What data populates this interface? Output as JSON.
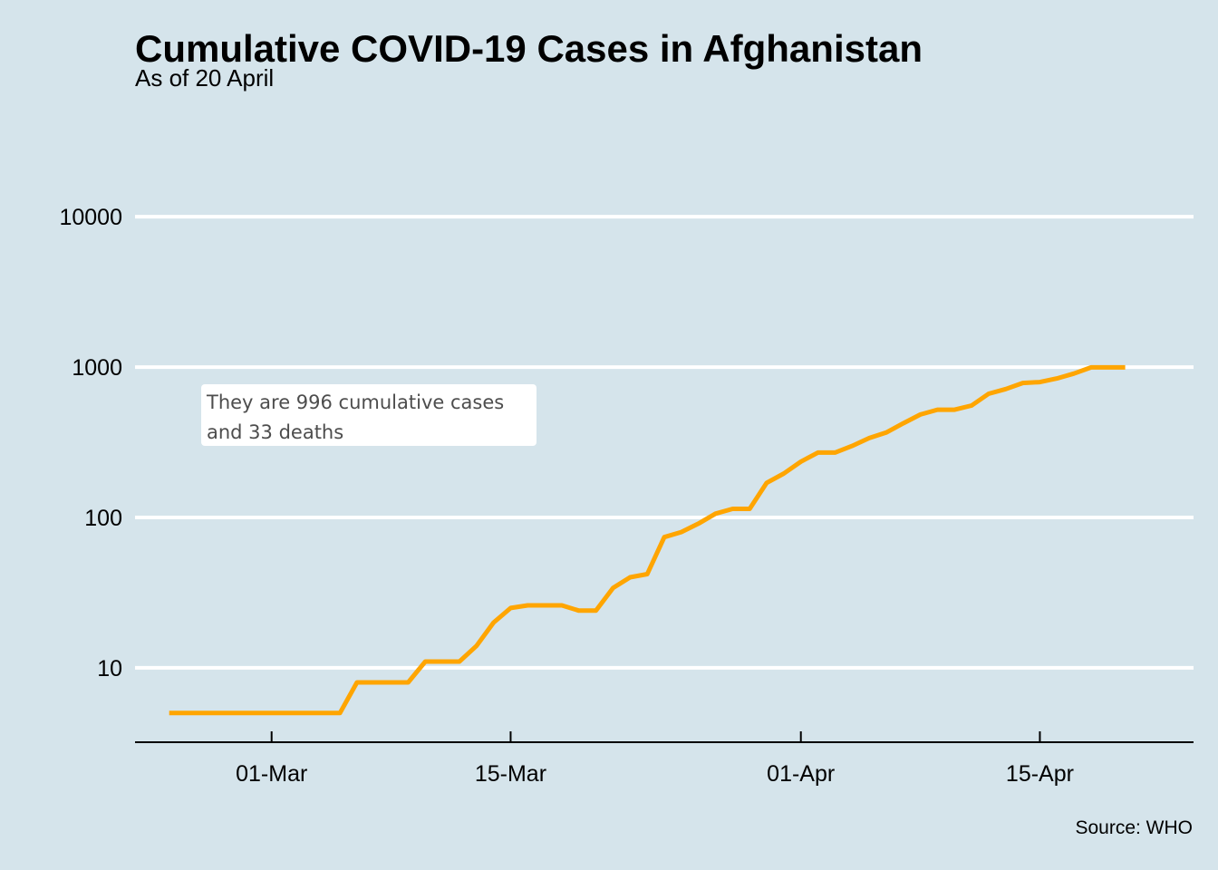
{
  "chart_data": {
    "type": "line",
    "title": "Cumulative COVID-19 Cases in Afghanistan",
    "subtitle": "As of 20 April",
    "caption": "Source: WHO",
    "annotation": "They are 996 cumulative cases\nand 33 deaths",
    "y_scale": "log10",
    "ylim": [
      3.2,
      30000
    ],
    "xlim": [
      "2020-02-22",
      "2020-04-24"
    ],
    "y_ticks": [
      10,
      100,
      1000,
      10000
    ],
    "y_tick_labels": [
      "10",
      "100",
      "1000",
      "10000"
    ],
    "x_ticks": [
      "2020-03-01",
      "2020-03-15",
      "2020-04-01",
      "2020-04-15"
    ],
    "x_tick_labels": [
      "01-Mar",
      "15-Mar",
      "01-Apr",
      "15-Apr"
    ],
    "grid": "horizontal",
    "line_color": "#ffa500",
    "background": "#d5e4eb",
    "series": [
      {
        "x": [
          "2020-02-24",
          "2020-02-25",
          "2020-02-26",
          "2020-02-27",
          "2020-02-28",
          "2020-02-29",
          "2020-03-01",
          "2020-03-02",
          "2020-03-03",
          "2020-03-04",
          "2020-03-05",
          "2020-03-06",
          "2020-03-07",
          "2020-03-08",
          "2020-03-09",
          "2020-03-10",
          "2020-03-11",
          "2020-03-12",
          "2020-03-13",
          "2020-03-14",
          "2020-03-15",
          "2020-03-16",
          "2020-03-17",
          "2020-03-18",
          "2020-03-19",
          "2020-03-20",
          "2020-03-21",
          "2020-03-22",
          "2020-03-23",
          "2020-03-24",
          "2020-03-25",
          "2020-03-26",
          "2020-03-27",
          "2020-03-28",
          "2020-03-29",
          "2020-03-30",
          "2020-03-31",
          "2020-04-01",
          "2020-04-02",
          "2020-04-03",
          "2020-04-04",
          "2020-04-05",
          "2020-04-06",
          "2020-04-07",
          "2020-04-08",
          "2020-04-09",
          "2020-04-10",
          "2020-04-11",
          "2020-04-12",
          "2020-04-13",
          "2020-04-14",
          "2020-04-15",
          "2020-04-16",
          "2020-04-17",
          "2020-04-18",
          "2020-04-19",
          "2020-04-20"
        ],
        "y": [
          5,
          5,
          5,
          5,
          5,
          5,
          5,
          5,
          5,
          5,
          5,
          8,
          8,
          8,
          8,
          11,
          11,
          11,
          14,
          20,
          25,
          26,
          26,
          26,
          24,
          24,
          34,
          40,
          42,
          74,
          80,
          91,
          106,
          114,
          114,
          170,
          196,
          235,
          270,
          270,
          299,
          337,
          367,
          423,
          484,
          521,
          521,
          555,
          665,
          714,
          784,
          795,
          840,
          906,
          996,
          996,
          996
        ]
      }
    ]
  }
}
